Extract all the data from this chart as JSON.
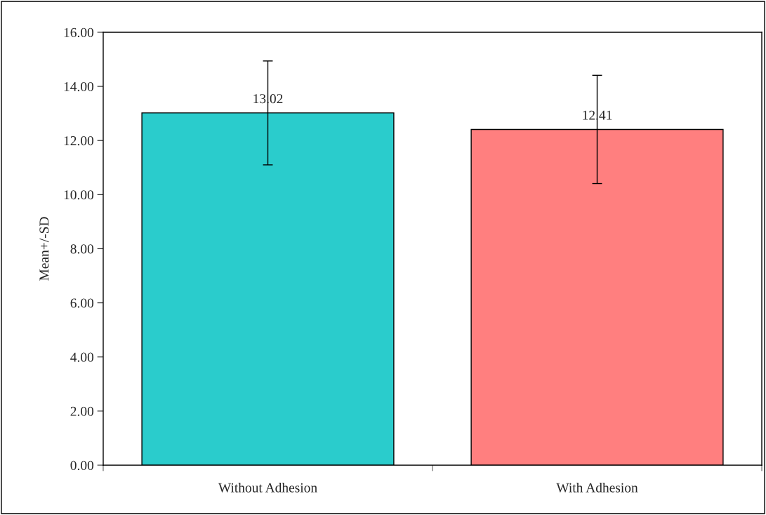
{
  "chart_data": {
    "type": "bar",
    "ylabel": "Mean+/-SD",
    "categories": [
      "Without Adhesion",
      "With Adhesion"
    ],
    "values": [
      13.02,
      12.41
    ],
    "colors": [
      "#2acccc",
      "#ff7f7f"
    ],
    "errors": [
      1.92,
      2.0
    ],
    "ylim": [
      0,
      16
    ],
    "yticks": [
      {
        "value": 0,
        "label": "0.00"
      },
      {
        "value": 2,
        "label": "2.00"
      },
      {
        "value": 4,
        "label": "4.00"
      },
      {
        "value": 6,
        "label": "6.00"
      },
      {
        "value": 8,
        "label": "8.00"
      },
      {
        "value": 10,
        "label": "10.00"
      },
      {
        "value": 12,
        "label": "12.00"
      },
      {
        "value": 14,
        "label": "14.00"
      },
      {
        "value": 16,
        "label": "16.00"
      }
    ],
    "data_labels": true,
    "grid": false,
    "legend": false
  }
}
